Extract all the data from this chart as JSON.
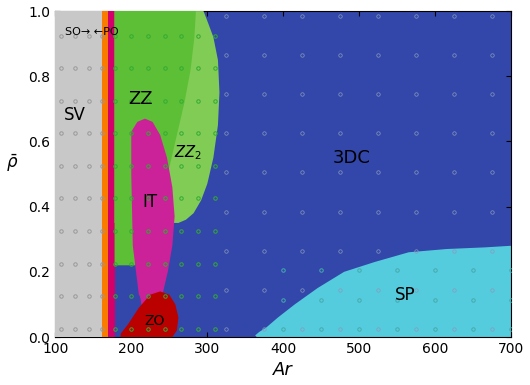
{
  "xlim": [
    100,
    700
  ],
  "ylim": [
    0,
    1.0
  ],
  "xlabel": "Ar",
  "ylabel": "$\\bar{\\rho}$",
  "colors": {
    "SV": "#c8c8c8",
    "SO": "#f97b00",
    "PO": "#d4006a",
    "ZZ": "#5dbf35",
    "ZZ2": "#80cc55",
    "IT": "#cc2299",
    "ZO": "#bb0000",
    "3DC": "#3347aa",
    "SP": "#55ccdd"
  },
  "xticks": [
    100,
    200,
    300,
    400,
    500,
    600,
    700
  ],
  "yticks": [
    0,
    0.2,
    0.4,
    0.6,
    0.8,
    1.0
  ]
}
